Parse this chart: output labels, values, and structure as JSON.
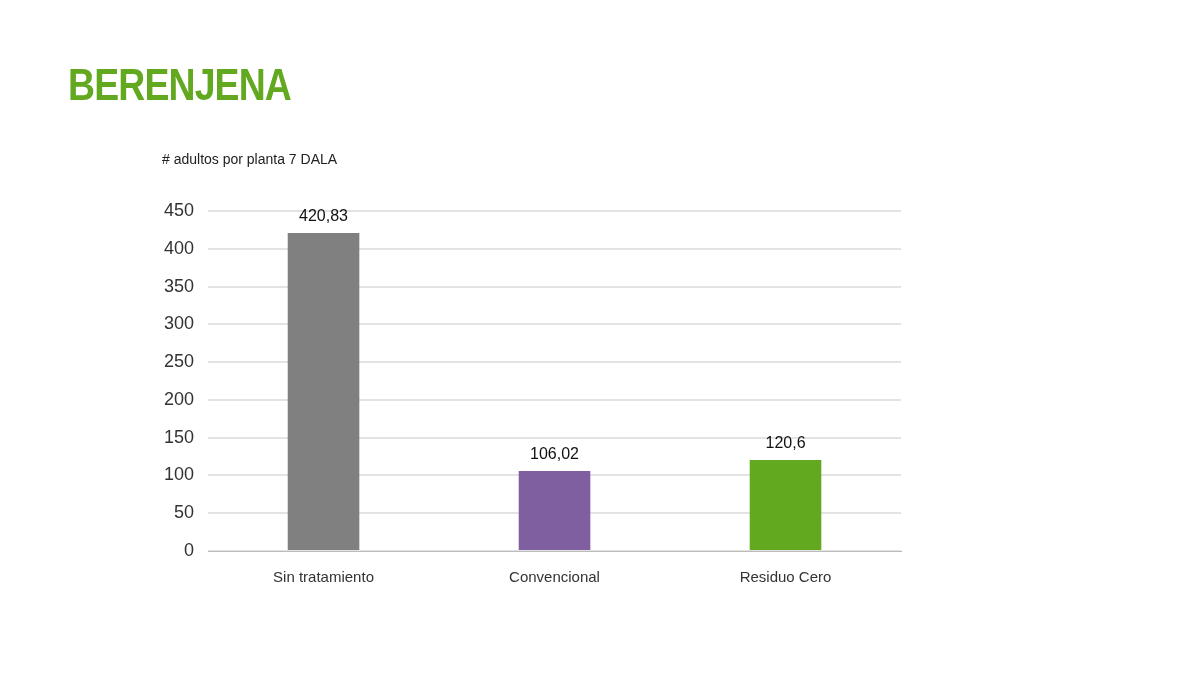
{
  "chart_data": {
    "type": "bar",
    "title": "BERENJENA",
    "ylabel": "# adultos por planta 7 DALA",
    "categories": [
      "Sin tratamiento",
      "Convencional",
      "Residuo Cero"
    ],
    "values": [
      420.83,
      106.02,
      120.6
    ],
    "colors": [
      "#808080",
      "#7f5fa0",
      "#62a920"
    ],
    "value_labels": [
      "420,83",
      "106,02",
      "120,6"
    ],
    "ylim": [
      0,
      450
    ],
    "yticks": [
      0,
      50,
      100,
      150,
      200,
      250,
      300,
      350,
      400,
      450
    ],
    "grid": "y"
  }
}
